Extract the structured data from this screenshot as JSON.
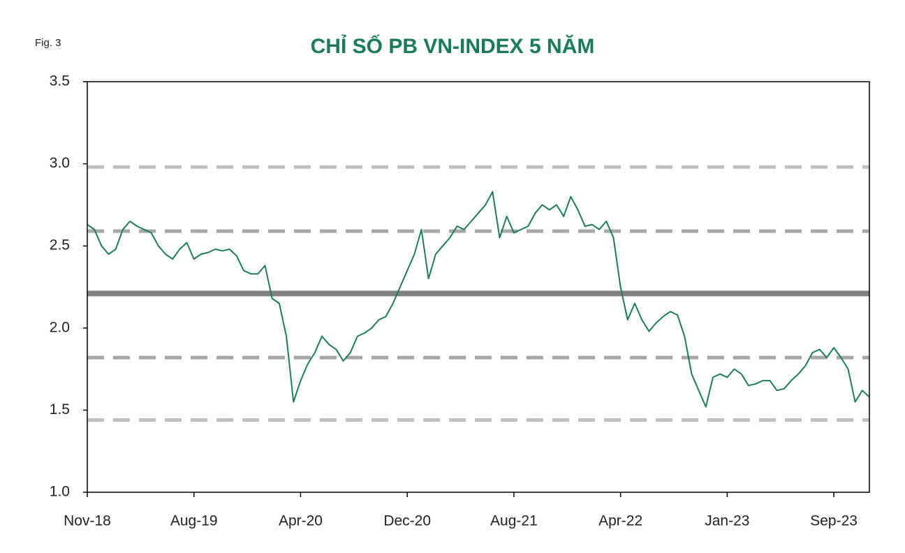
{
  "chart_data": {
    "type": "line",
    "figure_label": "Fig. 3",
    "title": "CHỈ SỐ PB VN-INDEX 5 NĂM",
    "title_color": "#1a7a5c",
    "categories": [
      "Nov-18",
      null,
      null,
      null,
      null,
      null,
      null,
      null,
      null,
      null,
      null,
      null,
      null,
      null,
      null,
      "Aug-19",
      null,
      null,
      null,
      null,
      null,
      null,
      null,
      null,
      null,
      null,
      null,
      null,
      null,
      null,
      "Apr-20",
      null,
      null,
      null,
      null,
      null,
      null,
      null,
      null,
      null,
      null,
      null,
      null,
      null,
      null,
      "Dec-20",
      null,
      null,
      null,
      null,
      null,
      null,
      null,
      null,
      null,
      null,
      null,
      null,
      null,
      null,
      "Aug-21",
      null,
      null,
      null,
      null,
      null,
      null,
      null,
      null,
      null,
      null,
      null,
      null,
      null,
      null,
      "Apr-22",
      null,
      null,
      null,
      null,
      null,
      null,
      null,
      null,
      null,
      null,
      null,
      null,
      null,
      null,
      "Jan-23",
      null,
      null,
      null,
      null,
      null,
      null,
      null,
      null,
      null,
      null,
      null,
      null,
      null,
      null,
      "Sep-23",
      null,
      null,
      null,
      null,
      null
    ],
    "series": [
      {
        "color": "#1e7a5e",
        "values": [
          2.63,
          2.6,
          2.5,
          2.45,
          2.48,
          2.6,
          2.65,
          2.62,
          2.6,
          2.58,
          2.5,
          2.45,
          2.42,
          2.48,
          2.52,
          2.42,
          2.45,
          2.46,
          2.48,
          2.47,
          2.48,
          2.44,
          2.35,
          2.33,
          2.33,
          2.38,
          2.18,
          2.15,
          1.95,
          1.55,
          1.68,
          1.78,
          1.85,
          1.95,
          1.9,
          1.87,
          1.8,
          1.85,
          1.95,
          1.97,
          2.0,
          2.05,
          2.07,
          2.15,
          2.25,
          2.35,
          2.45,
          2.6,
          2.3,
          2.45,
          2.5,
          2.55,
          2.62,
          2.6,
          2.65,
          2.7,
          2.75,
          2.83,
          2.55,
          2.68,
          2.58,
          2.6,
          2.62,
          2.7,
          2.75,
          2.72,
          2.75,
          2.68,
          2.8,
          2.72,
          2.62,
          2.63,
          2.6,
          2.65,
          2.55,
          2.25,
          2.05,
          2.15,
          2.05,
          1.98,
          2.03,
          2.07,
          2.1,
          2.08,
          1.95,
          1.72,
          1.62,
          1.52,
          1.7,
          1.72,
          1.7,
          1.75,
          1.72,
          1.65,
          1.66,
          1.68,
          1.68,
          1.62,
          1.63,
          1.68,
          1.72,
          1.77,
          1.85,
          1.87,
          1.82,
          1.88,
          1.82,
          1.75,
          1.55,
          1.62,
          1.58
        ]
      }
    ],
    "reference_lines": [
      {
        "value": 2.98,
        "style": "dashed",
        "color": "#bfbfbf"
      },
      {
        "value": 2.59,
        "style": "dashed",
        "color": "#a6a6a6"
      },
      {
        "value": 2.21,
        "style": "solid",
        "color": "#808080"
      },
      {
        "value": 1.82,
        "style": "dashed",
        "color": "#a6a6a6"
      },
      {
        "value": 1.44,
        "style": "dashed",
        "color": "#bfbfbf"
      }
    ],
    "ylim": [
      1.0,
      3.5
    ],
    "yticks": [
      {
        "value": 1.0,
        "label": "1.0"
      },
      1.5,
      {
        "value": 2.0,
        "label": "2.0"
      },
      2.5,
      {
        "value": 3.0,
        "label": "3.0"
      },
      3.5
    ],
    "grid": false
  }
}
